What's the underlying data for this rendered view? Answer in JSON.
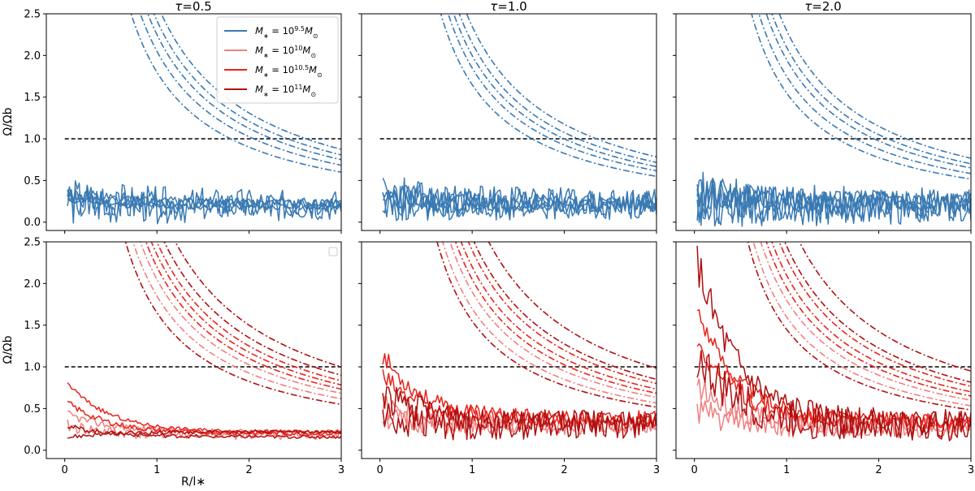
{
  "chart_data": {
    "type": "line",
    "title": "",
    "xlabel": "R/l∗",
    "ylabel": "Ω/Ωb",
    "xlim": [
      -0.2,
      3.0
    ],
    "ylim": [
      -0.1,
      2.5
    ],
    "x_ticks": [
      "0",
      "1",
      "2",
      "3"
    ],
    "y_ticks": [
      "0.0",
      "0.5",
      "1.0",
      "1.5",
      "2.0",
      "2.5"
    ],
    "reference_line": {
      "y": 1.0,
      "style": "dashed",
      "color": "#000000"
    },
    "columns": [
      {
        "tau_symbol": "τ",
        "tau_value": "=0.5"
      },
      {
        "tau_symbol": "τ",
        "tau_value": "=1.0"
      },
      {
        "tau_symbol": "τ",
        "tau_value": "=2.0"
      }
    ],
    "legend": [
      {
        "label_base": "M",
        "label_sub": "∗",
        "label_mid": " = 10",
        "label_exp": "9.5",
        "label_unit": "M",
        "label_unit_sub": "⊙",
        "color": "#3a7ab3"
      },
      {
        "label_base": "M",
        "label_sub": "∗",
        "label_mid": " = 10",
        "label_exp": "10",
        "label_unit": "M",
        "label_unit_sub": "⊙",
        "color": "#f08080"
      },
      {
        "label_base": "M",
        "label_sub": "∗",
        "label_mid": " = 10",
        "label_exp": "10.5",
        "label_unit": "M",
        "label_unit_sub": "⊙",
        "color": "#e8231c"
      },
      {
        "label_base": "M",
        "label_sub": "∗",
        "label_mid": " = 10",
        "label_exp": "11",
        "label_unit": "M",
        "label_unit_sub": "⊙",
        "color": "#b01010"
      }
    ],
    "panels": [
      {
        "row": 0,
        "col": 0,
        "dashdot": [
          {
            "color": "#3a7ab3",
            "a": 1.8,
            "start": 0.62
          },
          {
            "color": "#3a7ab3",
            "a": 2.05,
            "start": 0.7
          },
          {
            "color": "#3a7ab3",
            "a": 2.25,
            "start": 0.78
          },
          {
            "color": "#3a7ab3",
            "a": 2.42,
            "start": 0.85
          },
          {
            "color": "#3a7ab3",
            "a": 2.62,
            "start": 0.9
          }
        ],
        "solid": [
          {
            "color": "#3a7ab3",
            "base": 0.3,
            "end": 0.18,
            "noise": 0.05,
            "seed": 11
          },
          {
            "color": "#3a7ab3",
            "base": 0.35,
            "end": 0.22,
            "noise": 0.1,
            "seed": 12
          },
          {
            "color": "#3a7ab3",
            "base": 0.28,
            "end": 0.2,
            "noise": 0.2,
            "seed": 13
          },
          {
            "color": "#3a7ab3",
            "base": 0.25,
            "end": 0.2,
            "noise": 0.3,
            "seed": 14
          },
          {
            "color": "#3a7ab3",
            "base": 0.32,
            "end": 0.24,
            "noise": 0.08,
            "seed": 15
          }
        ]
      },
      {
        "row": 0,
        "col": 1,
        "dashdot": [
          {
            "color": "#3a7ab3",
            "a": 1.65,
            "start": 0.55
          },
          {
            "color": "#3a7ab3",
            "a": 1.85,
            "start": 0.6
          },
          {
            "color": "#3a7ab3",
            "a": 2.0,
            "start": 0.65
          },
          {
            "color": "#3a7ab3",
            "a": 2.15,
            "start": 0.72
          },
          {
            "color": "#3a7ab3",
            "a": 2.35,
            "start": 0.8
          }
        ],
        "solid": [
          {
            "color": "#3a7ab3",
            "base": 0.35,
            "end": 0.22,
            "noise": 0.15,
            "seed": 21
          },
          {
            "color": "#3a7ab3",
            "base": 0.3,
            "end": 0.2,
            "noise": 0.2,
            "seed": 22
          },
          {
            "color": "#3a7ab3",
            "base": 0.32,
            "end": 0.24,
            "noise": 0.25,
            "seed": 23
          },
          {
            "color": "#3a7ab3",
            "base": 0.28,
            "end": 0.2,
            "noise": 0.12,
            "seed": 24
          },
          {
            "color": "#3a7ab3",
            "base": 0.3,
            "end": 0.22,
            "noise": 0.3,
            "seed": 25
          }
        ]
      },
      {
        "row": 0,
        "col": 2,
        "dashdot": [
          {
            "color": "#3a7ab3",
            "a": 1.55,
            "start": 0.45
          },
          {
            "color": "#3a7ab3",
            "a": 1.75,
            "start": 0.5
          },
          {
            "color": "#3a7ab3",
            "a": 1.95,
            "start": 0.6
          },
          {
            "color": "#3a7ab3",
            "a": 2.1,
            "start": 0.7
          },
          {
            "color": "#3a7ab3",
            "a": 2.3,
            "start": 0.78
          }
        ],
        "solid": [
          {
            "color": "#3a7ab3",
            "base": 0.35,
            "end": 0.22,
            "noise": 0.25,
            "seed": 31
          },
          {
            "color": "#3a7ab3",
            "base": 0.3,
            "end": 0.2,
            "noise": 0.3,
            "seed": 32
          },
          {
            "color": "#3a7ab3",
            "base": 0.4,
            "end": 0.25,
            "noise": 0.2,
            "seed": 33
          },
          {
            "color": "#3a7ab3",
            "base": 0.28,
            "end": 0.2,
            "noise": 0.35,
            "seed": 34
          },
          {
            "color": "#3a7ab3",
            "base": 0.32,
            "end": 0.24,
            "noise": 0.15,
            "seed": 35
          }
        ]
      },
      {
        "row": 1,
        "col": 0,
        "dashdot": [
          {
            "color": "#f08080",
            "a": 1.85,
            "start": 0.72
          },
          {
            "color": "#f08080",
            "a": 2.05,
            "start": 0.8
          },
          {
            "color": "#e8231c",
            "a": 2.2,
            "start": 0.85
          },
          {
            "color": "#e8231c",
            "a": 2.35,
            "start": 0.88
          },
          {
            "color": "#e8231c",
            "a": 2.5,
            "start": 0.92
          },
          {
            "color": "#b01010",
            "a": 1.65,
            "start": 0.6
          },
          {
            "color": "#b01010",
            "a": 2.7,
            "start": 0.95
          },
          {
            "color": "#b01010",
            "a": 3.0,
            "start": 1.05
          }
        ],
        "solid": [
          {
            "color": "#f08080",
            "base": 0.3,
            "end": 0.18,
            "noise": 0.08,
            "seed": 41
          },
          {
            "color": "#f08080",
            "base": 0.45,
            "end": 0.22,
            "noise": 0.05,
            "seed": 42
          },
          {
            "color": "#e8231c",
            "base": 0.6,
            "end": 0.2,
            "noise": 0.04,
            "seed": 43
          },
          {
            "color": "#e8231c",
            "base": 0.85,
            "end": 0.22,
            "noise": 0.03,
            "seed": 44
          },
          {
            "color": "#b01010",
            "base": 0.15,
            "end": 0.22,
            "noise": 0.03,
            "seed": 45
          },
          {
            "color": "#b01010",
            "base": 0.3,
            "end": 0.16,
            "noise": 0.03,
            "seed": 46
          }
        ]
      },
      {
        "row": 1,
        "col": 1,
        "dashdot": [
          {
            "color": "#f08080",
            "a": 1.7,
            "start": 0.6
          },
          {
            "color": "#f08080",
            "a": 1.9,
            "start": 0.65
          },
          {
            "color": "#e8231c",
            "a": 2.05,
            "start": 0.72
          },
          {
            "color": "#e8231c",
            "a": 2.2,
            "start": 0.78
          },
          {
            "color": "#e8231c",
            "a": 2.4,
            "start": 0.85
          },
          {
            "color": "#b01010",
            "a": 1.55,
            "start": 0.55
          },
          {
            "color": "#b01010",
            "a": 2.55,
            "start": 0.9
          },
          {
            "color": "#b01010",
            "a": 2.95,
            "start": 1.0
          }
        ],
        "solid": [
          {
            "color": "#f08080",
            "base": 0.4,
            "end": 0.28,
            "noise": 0.15,
            "seed": 51
          },
          {
            "color": "#f08080",
            "base": 0.55,
            "end": 0.3,
            "noise": 0.15,
            "seed": 52
          },
          {
            "color": "#e8231c",
            "base": 1.2,
            "end": 0.35,
            "noise": 0.12,
            "seed": 53
          },
          {
            "color": "#e8231c",
            "base": 0.9,
            "end": 0.38,
            "noise": 0.15,
            "seed": 54
          },
          {
            "color": "#b01010",
            "base": 0.4,
            "end": 0.3,
            "noise": 0.25,
            "seed": 55
          },
          {
            "color": "#b01010",
            "base": 0.7,
            "end": 0.35,
            "noise": 0.2,
            "seed": 56
          }
        ]
      },
      {
        "row": 1,
        "col": 2,
        "dashdot": [
          {
            "color": "#f08080",
            "a": 1.6,
            "start": 0.45
          },
          {
            "color": "#f08080",
            "a": 1.8,
            "start": 0.55
          },
          {
            "color": "#e8231c",
            "a": 1.95,
            "start": 0.62
          },
          {
            "color": "#e8231c",
            "a": 2.1,
            "start": 0.7
          },
          {
            "color": "#e8231c",
            "a": 2.3,
            "start": 0.8
          },
          {
            "color": "#b01010",
            "a": 1.45,
            "start": 0.45
          },
          {
            "color": "#b01010",
            "a": 2.45,
            "start": 0.85
          },
          {
            "color": "#b01010",
            "a": 2.85,
            "start": 0.95
          }
        ],
        "solid": [
          {
            "color": "#f08080",
            "base": 0.5,
            "end": 0.25,
            "noise": 0.18,
            "seed": 61
          },
          {
            "color": "#f08080",
            "base": 0.8,
            "end": 0.3,
            "noise": 0.15,
            "seed": 62
          },
          {
            "color": "#e8231c",
            "base": 1.8,
            "end": 0.35,
            "noise": 0.12,
            "seed": 63
          },
          {
            "color": "#e8231c",
            "base": 1.4,
            "end": 0.35,
            "noise": 0.15,
            "seed": 64
          },
          {
            "color": "#b01010",
            "base": 1.2,
            "end": 0.3,
            "noise": 0.3,
            "seed": 65
          },
          {
            "color": "#b01010",
            "base": 2.4,
            "end": 0.3,
            "noise": 0.25,
            "seed": 66
          }
        ]
      }
    ]
  }
}
